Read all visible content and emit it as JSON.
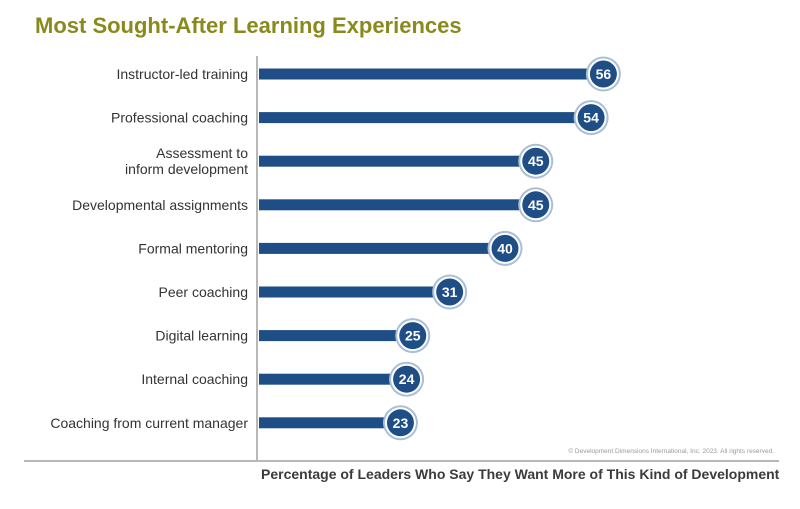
{
  "chart_data": {
    "type": "bar",
    "title": "Most Sought-After Learning Experiences",
    "xlabel": "Percentage of Leaders Who Say They Want More of This Kind of Development",
    "ylabel": "",
    "categories": [
      "Instructor-led training",
      "Professional coaching",
      "Assessment to\ninform development",
      "Developmental assignments",
      "Formal mentoring",
      "Peer coaching",
      "Digital learning",
      "Internal coaching",
      "Coaching from current manager"
    ],
    "values": [
      56,
      54,
      45,
      45,
      40,
      31,
      25,
      24,
      23
    ],
    "orientation": "horizontal",
    "grid": false,
    "bar_color": "#1f4e87",
    "bubble_ring_color": "#a9bfd6",
    "title_color": "#8a8a1c"
  },
  "footer": {
    "copyright": "© Development Dimensions International, Inc. 2023. All rights reserved."
  }
}
